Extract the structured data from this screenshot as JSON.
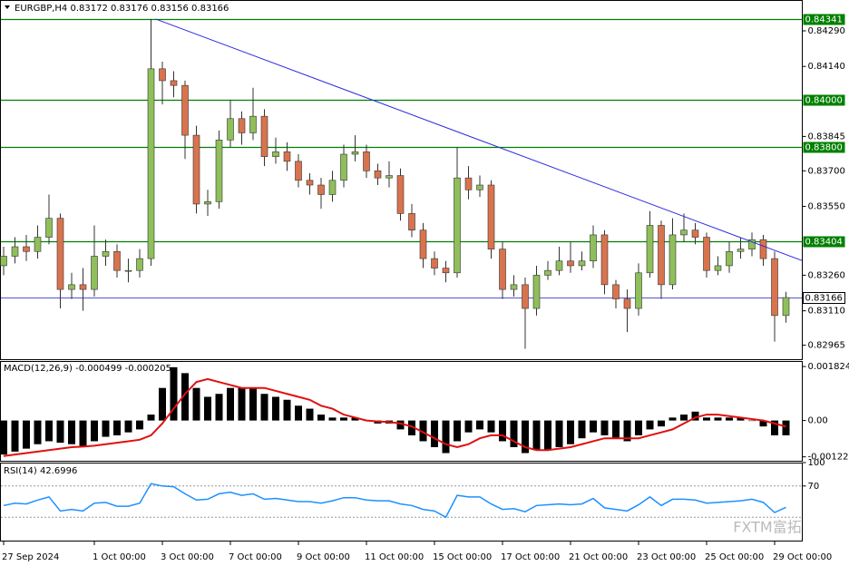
{
  "chart_data": [
    {
      "type": "candlestick",
      "title": "EURGBP,H4  0.83172 0.83176 0.83156 0.83166",
      "categories": [
        "27 Sep 2024",
        null,
        null,
        null,
        null,
        null,
        null,
        null,
        "1 Oct 00:00",
        null,
        null,
        null,
        null,
        null,
        "3 Oct 00:00",
        null,
        null,
        null,
        null,
        null,
        "7 Oct 00:00",
        null,
        null,
        null,
        null,
        null,
        "9 Oct 00:00",
        null,
        null,
        null,
        null,
        null,
        "11 Oct 00:00",
        null,
        null,
        null,
        null,
        null,
        "15 Oct 00:00",
        null,
        null,
        null,
        null,
        null,
        "17 Oct 00:00",
        null,
        null,
        null,
        null,
        null,
        "21 Oct 00:00",
        null,
        null,
        null,
        null,
        null,
        "23 Oct 00:00",
        null,
        null,
        null,
        null,
        null,
        "25 Oct 00:00",
        null,
        null,
        null,
        null,
        null,
        "29 Oct 00:00",
        null
      ],
      "open": [
        0.833,
        0.8334,
        0.8338,
        0.8336,
        0.8342,
        0.835,
        0.832,
        0.8322,
        0.832,
        0.8334,
        0.8336,
        0.8328,
        0.8328,
        0.8333,
        0.8413,
        0.8408,
        0.8406,
        0.8385,
        0.8356,
        0.8357,
        0.8383,
        0.8392,
        0.8386,
        0.8393,
        0.8376,
        0.8378,
        0.8374,
        0.8366,
        0.8364,
        0.836,
        0.8366,
        0.8377,
        0.8378,
        0.837,
        0.8367,
        0.8368,
        0.8352,
        0.8345,
        0.8333,
        0.8329,
        0.8327,
        0.8367,
        0.8362,
        0.8364,
        0.8337,
        0.832,
        0.8322,
        0.8312,
        0.8326,
        0.8328,
        0.8332,
        0.833,
        0.8332,
        0.8343,
        0.8322,
        0.8316,
        0.8312,
        0.8327,
        0.8347,
        0.8322,
        0.8343,
        0.8345,
        0.8342,
        0.8328,
        0.833,
        0.8336,
        0.8337,
        0.8341,
        0.8333,
        0.8309
      ],
      "high": [
        0.8338,
        0.8342,
        0.8343,
        0.8347,
        0.836,
        0.8352,
        0.8327,
        0.8329,
        0.8347,
        0.8341,
        0.8339,
        0.8333,
        0.8337,
        0.8434,
        0.8416,
        0.8412,
        0.8408,
        0.8389,
        0.8362,
        0.8387,
        0.84,
        0.8395,
        0.8405,
        0.8396,
        0.8384,
        0.8382,
        0.8377,
        0.8369,
        0.8367,
        0.837,
        0.8381,
        0.8385,
        0.8381,
        0.8373,
        0.8374,
        0.8371,
        0.8356,
        0.8348,
        0.8336,
        0.8332,
        0.838,
        0.8372,
        0.8368,
        0.8366,
        0.834,
        0.8326,
        0.8325,
        0.833,
        0.8332,
        0.8338,
        0.834,
        0.8336,
        0.8347,
        0.8345,
        0.8324,
        0.832,
        0.8331,
        0.8353,
        0.8349,
        0.835,
        0.8352,
        0.8348,
        0.8344,
        0.8334,
        0.834,
        0.8342,
        0.8344,
        0.8343,
        0.8336,
        0.8319
      ],
      "low": [
        0.8326,
        0.8331,
        0.8332,
        0.8333,
        0.8339,
        0.8312,
        0.8316,
        0.8311,
        0.8317,
        0.833,
        0.8325,
        0.8323,
        0.8325,
        0.833,
        0.8398,
        0.8401,
        0.8375,
        0.8352,
        0.8351,
        0.8354,
        0.838,
        0.8381,
        0.8383,
        0.8372,
        0.8373,
        0.837,
        0.8363,
        0.836,
        0.8354,
        0.8357,
        0.8363,
        0.8374,
        0.8367,
        0.8364,
        0.8363,
        0.8349,
        0.8342,
        0.8329,
        0.8326,
        0.8323,
        0.8325,
        0.8358,
        0.8359,
        0.8333,
        0.8316,
        0.8317,
        0.8295,
        0.8309,
        0.8324,
        0.8326,
        0.8327,
        0.8328,
        0.8329,
        0.8318,
        0.8312,
        0.8302,
        0.8309,
        0.8325,
        0.8316,
        0.832,
        0.834,
        0.8339,
        0.8325,
        0.8326,
        0.8327,
        0.8333,
        0.8334,
        0.833,
        0.8298,
        0.8306
      ],
      "close": [
        0.8334,
        0.8338,
        0.8336,
        0.8342,
        0.835,
        0.832,
        0.8322,
        0.832,
        0.8334,
        0.8336,
        0.8328,
        0.8328,
        0.8333,
        0.8413,
        0.8408,
        0.8406,
        0.8385,
        0.8356,
        0.8357,
        0.8383,
        0.8392,
        0.8386,
        0.8393,
        0.8376,
        0.8378,
        0.8374,
        0.8366,
        0.8364,
        0.836,
        0.8366,
        0.8377,
        0.8378,
        0.837,
        0.8367,
        0.8368,
        0.8352,
        0.8345,
        0.8333,
        0.8329,
        0.8327,
        0.8367,
        0.8362,
        0.8364,
        0.8337,
        0.832,
        0.8322,
        0.8312,
        0.8326,
        0.8328,
        0.8332,
        0.833,
        0.8332,
        0.8343,
        0.8322,
        0.8316,
        0.8312,
        0.8327,
        0.8347,
        0.8322,
        0.8343,
        0.8345,
        0.8342,
        0.8328,
        0.833,
        0.8336,
        0.8337,
        0.8341,
        0.8333,
        0.8309,
        0.83166
      ],
      "up_color": "#8fbf5a",
      "down_color": "#d9734e",
      "ylim": [
        0.82906,
        0.8442
      ],
      "yticks": [
        {
          "value": 0.8429,
          "label": "0.84290"
        },
        {
          "value": 0.8414,
          "label": "0.84140"
        },
        0.83845,
        {
          "value": 0.837,
          "label": "0.83700"
        },
        {
          "value": 0.8355,
          "label": "0.83550"
        },
        {
          "value": 0.8326,
          "label": "0.83260"
        },
        {
          "value": 0.8311,
          "label": "0.83110"
        },
        0.82965
      ],
      "levels": [
        0.84341,
        {
          "value": 0.84,
          "label": "0.84000"
        },
        {
          "value": 0.838,
          "label": "0.83800"
        },
        0.83404
      ],
      "level_color": "#008000",
      "last_price": 0.83166,
      "last_price_color": "#1e1ebe",
      "trendline": {
        "x": [
          13.4,
          70.4
        ],
        "y": [
          0.8434,
          0.83322
        ],
        "color": "#2828e0"
      },
      "watermark": "FXTM富拓"
    },
    {
      "type": "macd",
      "title": "MACD(12,26,9) -0.000499 -0.000205",
      "histogram": [
        -0.00115,
        -0.00105,
        -0.00095,
        -0.0008,
        -0.0007,
        -0.00075,
        -0.0008,
        -0.0009,
        -0.0007,
        -0.00055,
        -0.0005,
        -0.0004,
        -0.0003,
        0.0002,
        0.0011,
        0.0018,
        0.0016,
        0.0011,
        0.0008,
        0.0009,
        0.0011,
        0.0011,
        0.0011,
        0.0009,
        0.0008,
        0.0007,
        0.0005,
        0.0004,
        0.0002,
        0.0001,
        0.0001,
        0.0001,
        2e-05,
        -0.0001,
        -0.0001,
        -0.0003,
        -0.0005,
        -0.0007,
        -0.0009,
        -0.0011,
        -0.0007,
        -0.0004,
        -0.0003,
        -0.0004,
        -0.0007,
        -0.0009,
        -0.0011,
        -0.001,
        -0.001,
        -0.0009,
        -0.0008,
        -0.0006,
        -0.0004,
        -0.0005,
        -0.0006,
        -0.0007,
        -0.0005,
        -0.0003,
        -0.0002,
        0.0001,
        0.0002,
        0.0003,
        0.0001,
        0.0001,
        0.0001,
        0.0001,
        0.0,
        -0.0002,
        -0.0005,
        -0.000499
      ],
      "signal": [
        -0.0012,
        -0.00115,
        -0.0011,
        -0.00105,
        -0.001,
        -0.00095,
        -0.0009,
        -0.00088,
        -0.00085,
        -0.0008,
        -0.00075,
        -0.0007,
        -0.00065,
        -0.0005,
        -0.0001,
        0.0004,
        0.0009,
        0.0013,
        0.0014,
        0.0013,
        0.0012,
        0.0011,
        0.0011,
        0.0011,
        0.001,
        0.0009,
        0.0008,
        0.0007,
        0.0005,
        0.0004,
        0.0002,
        0.0001,
        0.0,
        -3e-05,
        -5e-05,
        -0.0001,
        -0.0002,
        -0.0004,
        -0.0006,
        -0.0008,
        -0.0009,
        -0.0008,
        -0.0006,
        -0.0005,
        -0.0005,
        -0.0007,
        -0.0009,
        -0.001,
        -0.001,
        -0.00095,
        -0.0009,
        -0.0008,
        -0.0007,
        -0.0006,
        -0.0006,
        -0.0006,
        -0.0006,
        -0.0005,
        -0.0004,
        -0.0003,
        -0.0001,
        0.0001,
        0.0002,
        0.0002,
        0.00015,
        0.0001,
        5e-05,
        0.0,
        -0.0001,
        -0.000205
      ],
      "histogram_color": "#000000",
      "signal_color": "#e01010",
      "ylim": [
        -0.00136,
        0.00201
      ],
      "yticks": [
        0.001824,
        {
          "value": 0,
          "label": "0.00"
        },
        -0.001227
      ]
    },
    {
      "type": "rsi",
      "title": "RSI(14) 42.6996",
      "values": [
        45,
        48,
        47,
        52,
        56,
        38,
        40,
        38,
        48,
        49,
        44,
        44,
        48,
        73,
        70,
        69,
        60,
        52,
        53,
        60,
        62,
        58,
        60,
        53,
        54,
        52,
        50,
        50,
        48,
        51,
        55,
        55,
        52,
        51,
        51,
        47,
        45,
        40,
        38,
        30,
        58,
        56,
        56,
        47,
        40,
        41,
        37,
        45,
        46,
        47,
        46,
        47,
        54,
        42,
        40,
        38,
        46,
        56,
        45,
        53,
        53,
        52,
        48,
        49,
        50,
        51,
        53,
        49,
        36,
        42.6996
      ],
      "color": "#1e90ff",
      "ylim": [
        0,
        100
      ],
      "yticks": [
        100,
        70
      ],
      "levels": [
        70,
        30
      ]
    }
  ]
}
